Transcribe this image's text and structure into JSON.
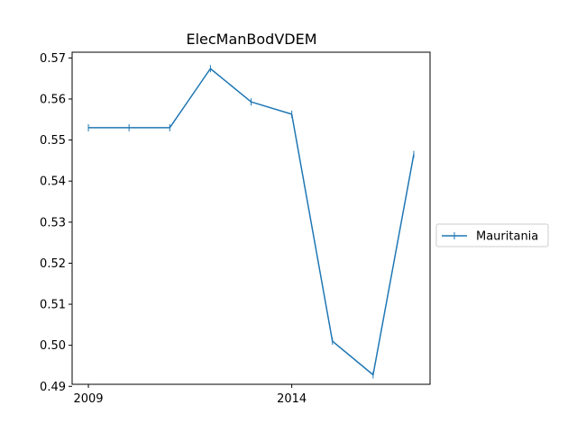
{
  "chart_data": {
    "type": "line",
    "title": "ElecManBodVDEM",
    "xlabel": "",
    "ylabel": "",
    "x": [
      2009,
      2010,
      2011,
      2012,
      2013,
      2014,
      2015,
      2016,
      2017
    ],
    "series": [
      {
        "name": "Mauritania",
        "color": "#1f77b4",
        "marker": "vertical-tick",
        "values": [
          0.553,
          0.553,
          0.553,
          0.5674,
          0.5593,
          0.5563,
          0.501,
          0.4928,
          0.5465
        ]
      }
    ],
    "xlim": [
      2008.6,
      2017.4
    ],
    "ylim": [
      0.4905,
      0.5714
    ],
    "xticks": [
      2009,
      2014
    ],
    "xtick_labels": [
      "2009",
      "2014"
    ],
    "yticks": [
      0.49,
      0.5,
      0.51,
      0.52,
      0.53,
      0.54,
      0.55,
      0.56,
      0.57
    ],
    "ytick_labels": [
      "0.49",
      "0.50",
      "0.51",
      "0.52",
      "0.53",
      "0.54",
      "0.55",
      "0.56",
      "0.57"
    ],
    "grid": false,
    "legend_position": "right-outside"
  }
}
